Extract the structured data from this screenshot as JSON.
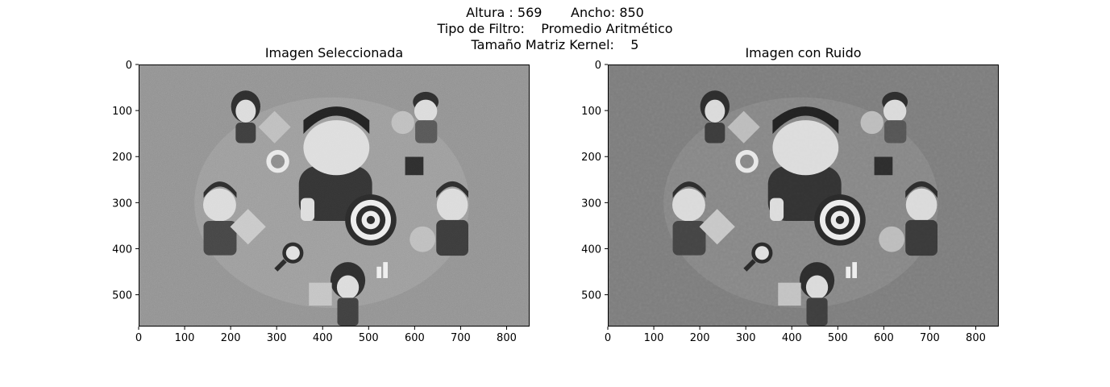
{
  "suptitle": {
    "line1": "Altura : 569       Ancho: 850",
    "line2": "Tipo de Filtro:    Promedio Aritmético",
    "line3": "Tamaño Matriz Kernel:    5"
  },
  "chart_data": [
    {
      "type": "image",
      "title": "Imagen Seleccionada",
      "xlim": [
        0,
        850
      ],
      "ylim": [
        569,
        0
      ],
      "xticks": [
        0,
        100,
        200,
        300,
        400,
        500,
        600,
        700,
        800
      ],
      "yticks": [
        0,
        100,
        200,
        300,
        400,
        500
      ],
      "colormap": "gray",
      "noise": "high"
    },
    {
      "type": "image",
      "title": "Imagen con Ruido",
      "xlim": [
        0,
        850
      ],
      "ylim": [
        569,
        0
      ],
      "xticks": [
        0,
        100,
        200,
        300,
        400,
        500,
        600,
        700,
        800
      ],
      "yticks": [
        0,
        100,
        200,
        300,
        400,
        500
      ],
      "colormap": "gray",
      "noise": "low"
    }
  ]
}
